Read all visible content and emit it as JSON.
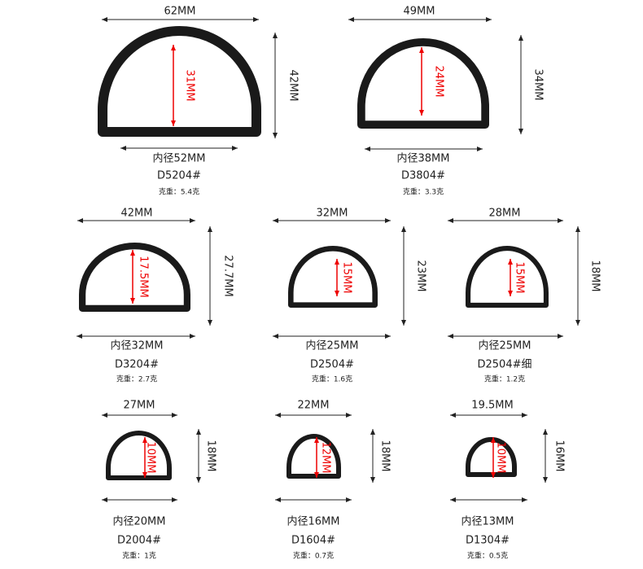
{
  "items": [
    {
      "width": "62MM",
      "height": "42MM",
      "inner_height": "31MM",
      "inner_width": "内径52MM",
      "model": "D5204#",
      "weight": "克重：5.4克"
    },
    {
      "width": "49MM",
      "height": "34MM",
      "inner_height": "24MM",
      "inner_width": "内径38MM",
      "model": "D3804#",
      "weight": "克重：3.3克"
    },
    {
      "width": "42MM",
      "height": "27.7MM",
      "inner_height": "17.5MM",
      "inner_width": "内径32MM",
      "model": "D3204#",
      "weight": "克重：2.7克"
    },
    {
      "width": "32MM",
      "height": "23MM",
      "inner_height": "15MM",
      "inner_width": "内径25MM",
      "model": "D2504#",
      "weight": "克重：1.6克"
    },
    {
      "width": "28MM",
      "height": "18MM",
      "inner_height": "15MM",
      "inner_width": "内径25MM",
      "model": "D2504#细",
      "weight": "克重：1.2克"
    },
    {
      "width": "27MM",
      "height": "18MM",
      "inner_height": "10MM",
      "inner_width": "内径20MM",
      "model": "D2004#",
      "weight": "克重：1克"
    },
    {
      "width": "22MM",
      "height": "18MM",
      "inner_height": "12MM",
      "inner_width": "内径16MM",
      "model": "D1604#",
      "weight": "克重：0.7克"
    },
    {
      "width": "19.5MM",
      "height": "16MM",
      "inner_height": "10MM",
      "inner_width": "内径13MM",
      "model": "D1304#",
      "weight": "克重：0.5克"
    }
  ]
}
